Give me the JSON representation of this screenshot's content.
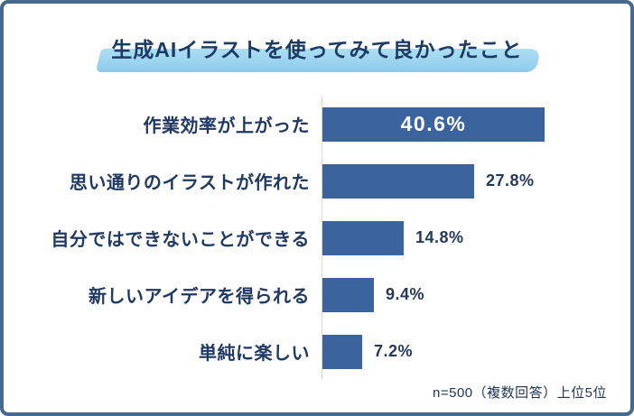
{
  "title": "生成AIイラストを使ってみて良かったこと",
  "footnote": "n=500（複数回答）上位5位",
  "colors": {
    "bar": "#3B649E",
    "frame_border": "#46698F",
    "title_text": "#1C3A63",
    "title_highlight": "#A5DBF2",
    "category_text": "#1F3864",
    "value_inside_text": "#FFFFFF",
    "value_outside_text": "#24395C",
    "axis_line": "#D9D9D9",
    "background": "#FFFFFF"
  },
  "chart_data": {
    "type": "bar",
    "orientation": "horizontal",
    "title": "生成AIイラストを使ってみて良かったこと",
    "note": "n=500（複数回答）上位5位",
    "xlim": [
      0,
      45
    ],
    "grid": false,
    "legend": false,
    "categories": [
      "作業効率が上がった",
      "思い通りのイラストが作れた",
      "自分ではできないことができる",
      "新しいアイデアを得られる",
      "単純に楽しい"
    ],
    "values": [
      40.6,
      27.8,
      14.8,
      9.4,
      7.2
    ],
    "items": [
      {
        "label": "作業効率が上がった",
        "value": 40.6,
        "display": "40.6%",
        "value_position": "inside"
      },
      {
        "label": "思い通りのイラストが作れた",
        "value": 27.8,
        "display": "27.8%",
        "value_position": "outside"
      },
      {
        "label": "自分ではできないことができる",
        "value": 14.8,
        "display": "14.8%",
        "value_position": "outside"
      },
      {
        "label": "新しいアイデアを得られる",
        "value": 9.4,
        "display": "9.4%",
        "value_position": "outside"
      },
      {
        "label": "単純に楽しい",
        "value": 7.2,
        "display": "7.2%",
        "value_position": "outside"
      }
    ]
  }
}
